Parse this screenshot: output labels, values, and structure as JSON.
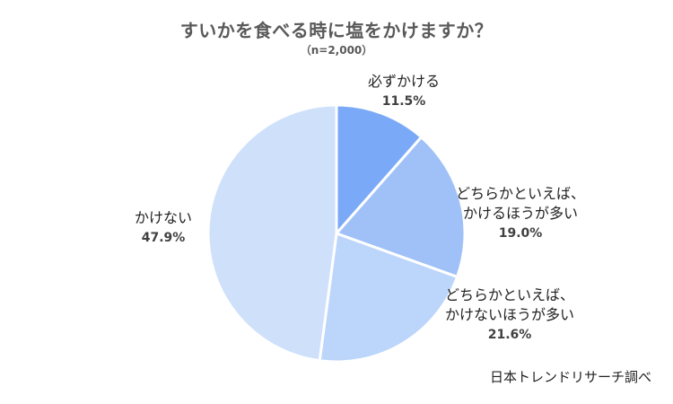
{
  "chart_data": {
    "type": "pie",
    "title": "すいかを食べる時に塩をかけますか？",
    "subtitle": "（n=2,000）",
    "slices": [
      {
        "label": "必ずかける",
        "value": 11.5,
        "display": "11.5%",
        "color": "#7aa9f7"
      },
      {
        "label": "どちらかといえば、\nかけるほうが多い",
        "value": 19.0,
        "display": "19.0%",
        "color": "#9fc1f8"
      },
      {
        "label": "どちらかといえば、\nかけないほうが多い",
        "value": 21.6,
        "display": "21.6%",
        "color": "#bcd5fa"
      },
      {
        "label": "かけない",
        "value": 47.9,
        "display": "47.9%",
        "color": "#cfe0fb"
      }
    ],
    "start_angle": "12 o'clock",
    "direction": "clockwise"
  },
  "footer": {
    "source": "日本トレンドリサーチ調べ"
  }
}
